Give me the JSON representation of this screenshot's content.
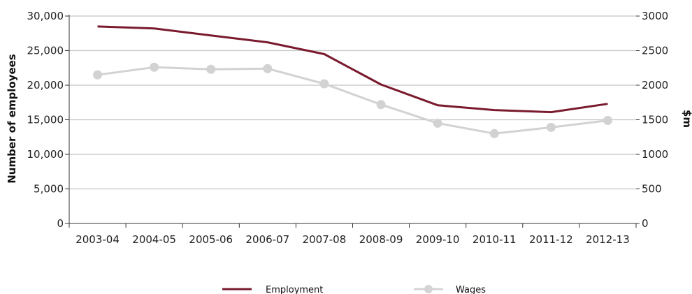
{
  "chart_data": {
    "type": "line",
    "categories": [
      "2003-04",
      "2004-05",
      "2005-06",
      "2006-07",
      "2007-08",
      "2008-09",
      "2009-10",
      "2010-11",
      "2011-12",
      "2012-13"
    ],
    "y_left": {
      "label": "Number of employees",
      "ticks": [
        "0",
        "5,000",
        "10,000",
        "15,000",
        "20,000",
        "25,000",
        "30,000"
      ],
      "range": [
        0,
        30000
      ]
    },
    "y_right": {
      "label": "$m",
      "ticks": [
        "0",
        "500",
        "1000",
        "1500",
        "2000",
        "2500",
        "3000"
      ],
      "range": [
        0,
        3000
      ]
    },
    "series": [
      {
        "name": "Employment",
        "axis": "left",
        "color": "#7a1a2e",
        "values": [
          28500,
          28200,
          27200,
          26200,
          24500,
          20100,
          17100,
          16400,
          16100,
          17300
        ]
      },
      {
        "name": "Wages",
        "axis": "right",
        "color": "#c8c8c8",
        "values": [
          2150,
          2260,
          2230,
          2240,
          2020,
          1720,
          1450,
          1300,
          1390,
          1490
        ]
      }
    ],
    "grid": true,
    "legend_position": "bottom"
  }
}
